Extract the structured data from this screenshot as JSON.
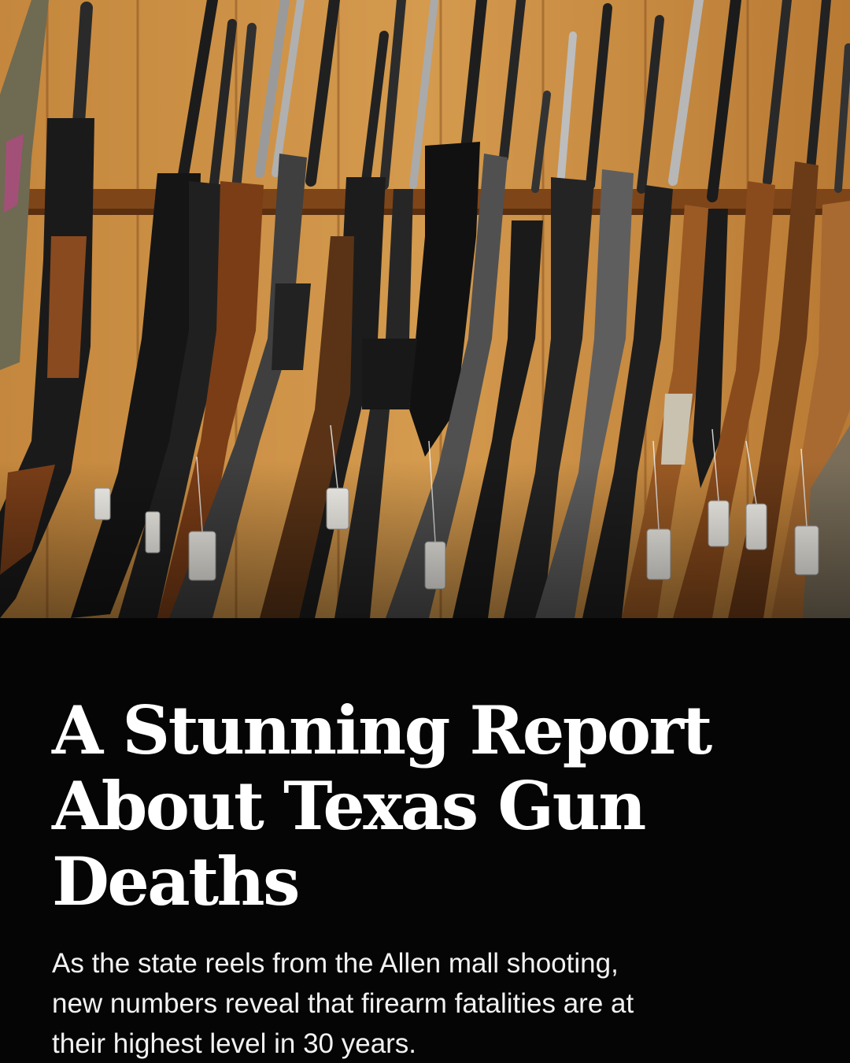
{
  "colors": {
    "background": "#050505",
    "headline": "#ffffff",
    "dek": "#f2f2f2",
    "wall_wood": "#b67633",
    "rail_wood": "#8a4f22"
  },
  "photo": {
    "subject": "rifle-rack-photo"
  },
  "headline": {
    "line1": "A Stunning Report",
    "line2": "About Texas Gun",
    "line3": "Deaths"
  },
  "dek": {
    "line1": "As the state reels from the Allen mall shooting,",
    "line2": "new numbers reveal that firearm fatalities are at",
    "line3": "their highest level in 30 years."
  }
}
